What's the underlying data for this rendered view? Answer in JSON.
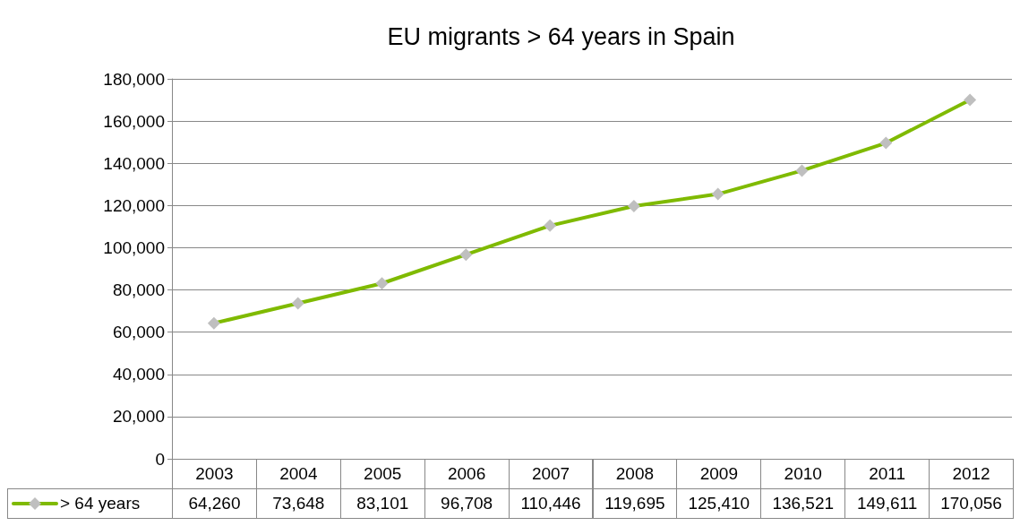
{
  "chart_data": {
    "type": "line",
    "title": "EU migrants > 64 years in Spain",
    "categories": [
      "2003",
      "2004",
      "2005",
      "2006",
      "2007",
      "2008",
      "2009",
      "2010",
      "2011",
      "2012"
    ],
    "series": [
      {
        "name": "> 64 years",
        "color": "#7fba00",
        "values": [
          64260,
          73648,
          83101,
          96708,
          110446,
          119695,
          125410,
          136521,
          149611,
          170056
        ],
        "value_labels": [
          "64,260",
          "73,648",
          "83,101",
          "96,708",
          "110,446",
          "119,695",
          "125,410",
          "136,521",
          "149,611",
          "170,056"
        ]
      }
    ],
    "ylim": [
      0,
      180000
    ],
    "yticks": [
      0,
      {
        "value": 20000,
        "label": "20,000"
      },
      {
        "value": 40000,
        "label": "40,000"
      },
      {
        "value": 60000,
        "label": "60,000"
      },
      {
        "value": 80000,
        "label": "80,000"
      },
      {
        "value": 100000,
        "label": "100,000"
      },
      {
        "value": 120000,
        "label": "120,000"
      },
      {
        "value": 140000,
        "label": "140,000"
      },
      {
        "value": 160000,
        "label": "160,000"
      },
      {
        "value": 180000,
        "label": "180,000"
      }
    ],
    "grid": "y",
    "legend": "bottom",
    "marker": "diamond",
    "line_style": "solid"
  }
}
